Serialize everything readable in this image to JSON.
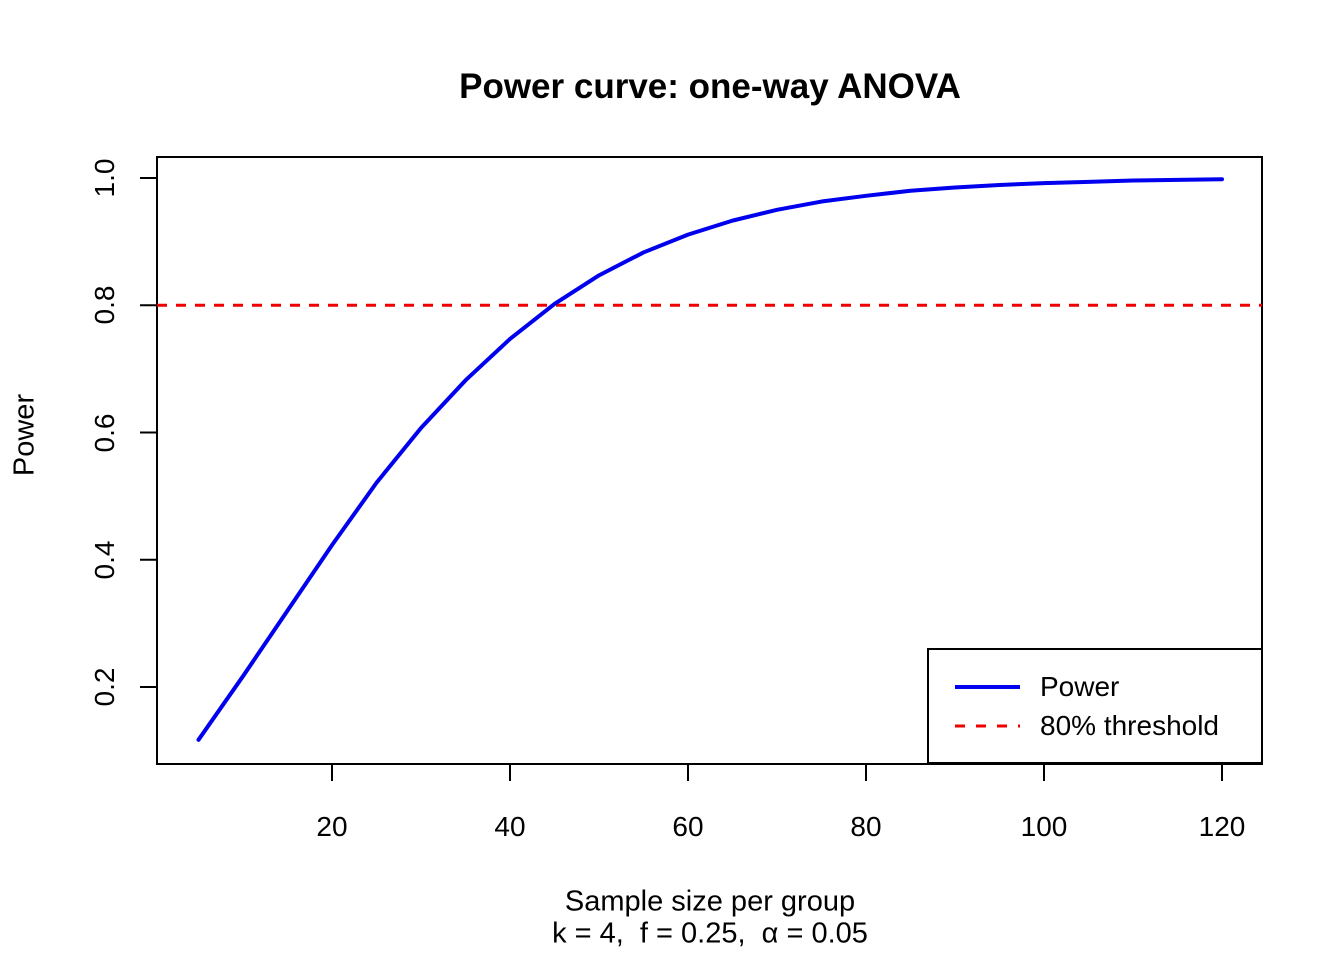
{
  "title": "Power curve: one-way ANOVA",
  "axes": {
    "x_label": "Sample size per group",
    "x_sublabel": "k = 4,  f = 0.25,  α = 0.05",
    "y_label": "Power",
    "x_tick_labels": [
      "20",
      "40",
      "60",
      "80",
      "100",
      "120"
    ],
    "y_tick_labels": [
      "0.2",
      "0.4",
      "0.6",
      "0.8",
      "1.0"
    ]
  },
  "legend": {
    "items": [
      {
        "label": "Power",
        "color": "#0000EE",
        "style": "solid"
      },
      {
        "label": "80% threshold",
        "color": "#EE0000",
        "style": "dashed"
      }
    ]
  },
  "colors": {
    "curve": "#0000EE",
    "threshold": "#EE0000",
    "axis": "#000000",
    "background": "#FFFFFF"
  },
  "chart_data": {
    "type": "line",
    "title": "Power curve: one-way ANOVA",
    "xlabel": "Sample size per group",
    "xlabel_subtitle": "k = 4,  f = 0.25,  α = 0.05",
    "ylabel": "Power",
    "params": {
      "k": 4,
      "f": 0.25,
      "alpha": 0.05
    },
    "x_ticks": [
      20,
      40,
      60,
      80,
      100,
      120
    ],
    "y_ticks": [
      0.2,
      0.4,
      0.6,
      0.8,
      1.0
    ],
    "xlim": [
      0.4,
      124.6
    ],
    "ylim": [
      0.093,
      1.024
    ],
    "grid": false,
    "legend_position": "bottomright",
    "threshold_line": {
      "y": 0.8,
      "label": "80% threshold",
      "color": "#EE0000",
      "linestyle": "dashed"
    },
    "series": [
      {
        "name": "Power",
        "color": "#0000EE",
        "linestyle": "solid",
        "x": [
          5,
          10,
          15,
          20,
          25,
          30,
          35,
          40,
          45,
          50,
          55,
          60,
          65,
          70,
          75,
          80,
          85,
          90,
          95,
          100,
          105,
          110,
          115,
          120
        ],
        "y": [
          0.117,
          0.217,
          0.32,
          0.423,
          0.521,
          0.607,
          0.682,
          0.747,
          0.802,
          0.847,
          0.883,
          0.911,
          0.933,
          0.95,
          0.963,
          0.972,
          0.98,
          0.985,
          0.989,
          0.992,
          0.994,
          0.996,
          0.997,
          0.998
        ]
      }
    ]
  }
}
